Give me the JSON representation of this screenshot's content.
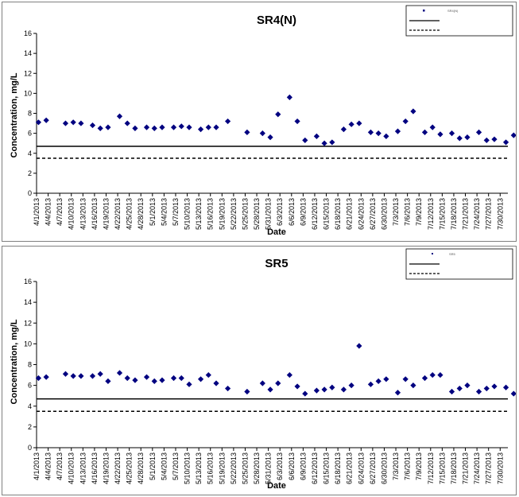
{
  "charts": [
    {
      "chart_data": {
        "type": "scatter",
        "title": "SR4(N)",
        "xlabel": "Date",
        "ylabel": "Concentration, mg/L",
        "ylim": [
          0,
          16
        ],
        "yticks": [
          0,
          2,
          4,
          6,
          8,
          10,
          12,
          14,
          16
        ],
        "grid": false,
        "legend": "top-right",
        "x_tick_labels": [
          "4/1/2013",
          "4/4/2013",
          "4/7/2013",
          "4/10/2013",
          "4/13/2013",
          "4/16/2013",
          "4/19/2013",
          "4/22/2013",
          "4/25/2013",
          "4/28/2013",
          "5/1/2013",
          "5/4/2013",
          "5/7/2013",
          "5/10/2013",
          "5/13/2013",
          "5/16/2013",
          "5/19/2013",
          "5/22/2013",
          "5/25/2013",
          "5/28/2013",
          "5/31/2013",
          "6/3/2013",
          "6/6/2013",
          "6/9/2013",
          "6/12/2013",
          "6/15/2013",
          "6/18/2013",
          "6/21/2013",
          "6/24/2013",
          "6/27/2013",
          "6/30/2013",
          "7/3/2013",
          "7/6/2013",
          "7/9/2013",
          "7/12/2013",
          "7/15/2013",
          "7/18/2013",
          "7/21/2013",
          "7/24/2013",
          "7/27/2013",
          "7/30/2013"
        ],
        "series": [
          {
            "name": "SR4(N)",
            "color": "#000080",
            "points": [
              [
                0,
                7.1
              ],
              [
                2,
                7.3
              ],
              [
                7,
                7.0
              ],
              [
                9,
                7.1
              ],
              [
                11,
                7.0
              ],
              [
                14,
                6.8
              ],
              [
                16,
                6.5
              ],
              [
                18,
                6.6
              ],
              [
                21,
                7.7
              ],
              [
                23,
                7.0
              ],
              [
                25,
                6.5
              ],
              [
                28,
                6.6
              ],
              [
                30,
                6.5
              ],
              [
                32,
                6.6
              ],
              [
                35,
                6.6
              ],
              [
                37,
                6.7
              ],
              [
                39,
                6.6
              ],
              [
                42,
                6.4
              ],
              [
                44,
                6.6
              ],
              [
                46,
                6.6
              ],
              [
                49,
                7.2
              ],
              [
                54,
                6.1
              ],
              [
                58,
                6.0
              ],
              [
                60,
                5.6
              ],
              [
                62,
                7.9
              ],
              [
                65,
                9.6
              ],
              [
                67,
                7.2
              ],
              [
                69,
                5.3
              ],
              [
                72,
                5.7
              ],
              [
                74,
                5.0
              ],
              [
                76,
                5.1
              ],
              [
                79,
                6.4
              ],
              [
                81,
                6.9
              ],
              [
                83,
                7.0
              ],
              [
                86,
                6.1
              ],
              [
                88,
                6.0
              ],
              [
                90,
                5.7
              ],
              [
                93,
                6.2
              ],
              [
                95,
                7.2
              ],
              [
                97,
                8.2
              ],
              [
                100,
                6.1
              ],
              [
                102,
                6.6
              ],
              [
                104,
                5.9
              ],
              [
                107,
                6.0
              ],
              [
                109,
                5.5
              ],
              [
                111,
                5.6
              ],
              [
                114,
                6.1
              ],
              [
                116,
                5.3
              ],
              [
                118,
                5.4
              ],
              [
                121,
                5.1
              ],
              [
                123,
                5.8
              ]
            ]
          }
        ],
        "reference_lines": [
          {
            "value": 4.7,
            "style": "solid"
          },
          {
            "value": 3.5,
            "style": "dashed"
          }
        ]
      }
    },
    {
      "chart_data": {
        "type": "scatter",
        "title": "SR5",
        "xlabel": "Date",
        "ylabel": "Concentration, mg/L",
        "ylim": [
          0,
          16
        ],
        "yticks": [
          0,
          2,
          4,
          6,
          8,
          10,
          12,
          14,
          16
        ],
        "grid": false,
        "legend": "top-right",
        "x_tick_labels": [
          "4/1/2013",
          "4/4/2013",
          "4/7/2013",
          "4/10/2013",
          "4/13/2013",
          "4/16/2013",
          "4/19/2013",
          "4/22/2013",
          "4/25/2013",
          "4/28/2013",
          "5/1/2013",
          "5/4/2013",
          "5/7/2013",
          "5/10/2013",
          "5/13/2013",
          "5/16/2013",
          "5/19/2013",
          "5/22/2013",
          "5/25/2013",
          "5/28/2013",
          "5/31/2013",
          "6/3/2013",
          "6/6/2013",
          "6/9/2013",
          "6/12/2013",
          "6/15/2013",
          "6/18/2013",
          "6/21/2013",
          "6/24/2013",
          "6/27/2013",
          "6/30/2013",
          "7/3/2013",
          "7/6/2013",
          "7/9/2013",
          "7/12/2013",
          "7/15/2013",
          "7/18/2013",
          "7/21/2013",
          "7/24/2013",
          "7/27/2013",
          "7/30/2013"
        ],
        "series": [
          {
            "name": "SR5",
            "color": "#000080",
            "points": [
              [
                0,
                6.7
              ],
              [
                2,
                6.8
              ],
              [
                7,
                7.1
              ],
              [
                9,
                6.9
              ],
              [
                11,
                6.9
              ],
              [
                14,
                6.9
              ],
              [
                16,
                7.1
              ],
              [
                18,
                6.4
              ],
              [
                21,
                7.2
              ],
              [
                23,
                6.7
              ],
              [
                25,
                6.5
              ],
              [
                28,
                6.8
              ],
              [
                30,
                6.4
              ],
              [
                32,
                6.5
              ],
              [
                35,
                6.7
              ],
              [
                37,
                6.7
              ],
              [
                39,
                6.1
              ],
              [
                42,
                6.6
              ],
              [
                44,
                7.0
              ],
              [
                46,
                6.2
              ],
              [
                49,
                5.7
              ],
              [
                54,
                5.4
              ],
              [
                58,
                6.2
              ],
              [
                60,
                5.6
              ],
              [
                62,
                6.2
              ],
              [
                65,
                7.0
              ],
              [
                67,
                5.9
              ],
              [
                69,
                5.2
              ],
              [
                72,
                5.5
              ],
              [
                74,
                5.6
              ],
              [
                76,
                5.8
              ],
              [
                79,
                5.6
              ],
              [
                81,
                6.0
              ],
              [
                83,
                9.8
              ],
              [
                86,
                6.1
              ],
              [
                88,
                6.4
              ],
              [
                90,
                6.6
              ],
              [
                93,
                5.3
              ],
              [
                95,
                6.6
              ],
              [
                97,
                6.0
              ],
              [
                100,
                6.7
              ],
              [
                102,
                7.0
              ],
              [
                104,
                7.0
              ],
              [
                107,
                5.4
              ],
              [
                109,
                5.7
              ],
              [
                111,
                6.0
              ],
              [
                114,
                5.4
              ],
              [
                116,
                5.7
              ],
              [
                118,
                5.9
              ],
              [
                121,
                5.8
              ],
              [
                123,
                5.2
              ]
            ]
          }
        ],
        "reference_lines": [
          {
            "value": 4.7,
            "style": "solid"
          },
          {
            "value": 3.5,
            "style": "dashed"
          }
        ]
      }
    }
  ]
}
